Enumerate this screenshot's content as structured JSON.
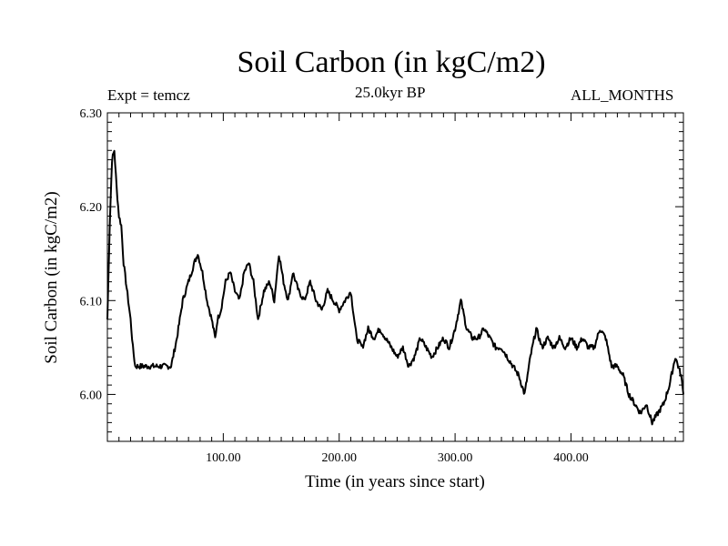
{
  "header": {
    "title": "Soil Carbon (in kgC/m2)",
    "expt": "Expt = temcz",
    "epoch": "25.0kyr BP",
    "months": "ALL_MONTHS"
  },
  "chart_data": {
    "type": "line",
    "title": "Soil Carbon (in kgC/m2)",
    "xlabel": "Time (in years since start)",
    "ylabel": "Soil Carbon (in kgC/m2)",
    "xlim": [
      0,
      497
    ],
    "ylim": [
      5.95,
      6.3
    ],
    "xticks": [
      100,
      200,
      300,
      400
    ],
    "xtick_labels": [
      "100.00",
      "200.00",
      "300.00",
      "400.00"
    ],
    "yticks": [
      6.0,
      6.1,
      6.2,
      6.3
    ],
    "ytick_labels": [
      "6.00",
      "6.10",
      "6.20",
      "6.30"
    ],
    "grid": false,
    "line_color": "#000000",
    "series": [
      {
        "x": [
          0,
          2,
          4,
          6,
          8,
          10,
          12,
          14,
          16,
          18,
          20,
          22,
          24,
          26,
          28,
          30,
          35,
          40,
          45,
          50,
          55,
          60,
          65,
          70,
          75,
          78,
          82,
          86,
          90,
          93,
          95,
          98,
          102,
          106,
          110,
          114,
          118,
          122,
          126,
          130,
          135,
          140,
          144,
          148,
          152,
          156,
          160,
          165,
          170,
          175,
          180,
          185,
          190,
          195,
          200,
          205,
          210,
          215,
          220,
          225,
          230,
          235,
          240,
          245,
          250,
          255,
          260,
          265,
          270,
          275,
          280,
          285,
          290,
          295,
          300,
          305,
          310,
          315,
          320,
          325,
          330,
          335,
          340,
          345,
          350,
          355,
          360,
          365,
          370,
          375,
          380,
          385,
          390,
          395,
          400,
          405,
          410,
          415,
          420,
          425,
          430,
          435,
          440,
          445,
          450,
          455,
          460,
          465,
          470,
          475,
          480,
          485,
          490,
          495,
          497
        ],
        "y": [
          6.08,
          6.18,
          6.25,
          6.26,
          6.22,
          6.19,
          6.18,
          6.14,
          6.12,
          6.1,
          6.08,
          6.05,
          6.03,
          6.03,
          6.03,
          6.03,
          6.03,
          6.03,
          6.03,
          6.03,
          6.03,
          6.06,
          6.1,
          6.12,
          6.14,
          6.15,
          6.13,
          6.1,
          6.08,
          6.06,
          6.08,
          6.09,
          6.12,
          6.13,
          6.11,
          6.1,
          6.13,
          6.14,
          6.12,
          6.08,
          6.11,
          6.12,
          6.1,
          6.15,
          6.12,
          6.1,
          6.13,
          6.11,
          6.1,
          6.12,
          6.1,
          6.09,
          6.11,
          6.1,
          6.09,
          6.1,
          6.11,
          6.06,
          6.05,
          6.07,
          6.06,
          6.07,
          6.06,
          6.05,
          6.04,
          6.05,
          6.03,
          6.04,
          6.06,
          6.05,
          6.04,
          6.05,
          6.06,
          6.05,
          6.07,
          6.1,
          6.07,
          6.06,
          6.06,
          6.07,
          6.06,
          6.05,
          6.05,
          6.04,
          6.03,
          6.02,
          6.0,
          6.04,
          6.07,
          6.05,
          6.06,
          6.05,
          6.06,
          6.05,
          6.06,
          6.05,
          6.06,
          6.05,
          6.05,
          6.07,
          6.06,
          6.03,
          6.03,
          6.02,
          6.0,
          5.99,
          5.98,
          5.99,
          5.97,
          5.98,
          5.99,
          6.01,
          6.04,
          6.02,
          6.0
        ]
      }
    ]
  }
}
